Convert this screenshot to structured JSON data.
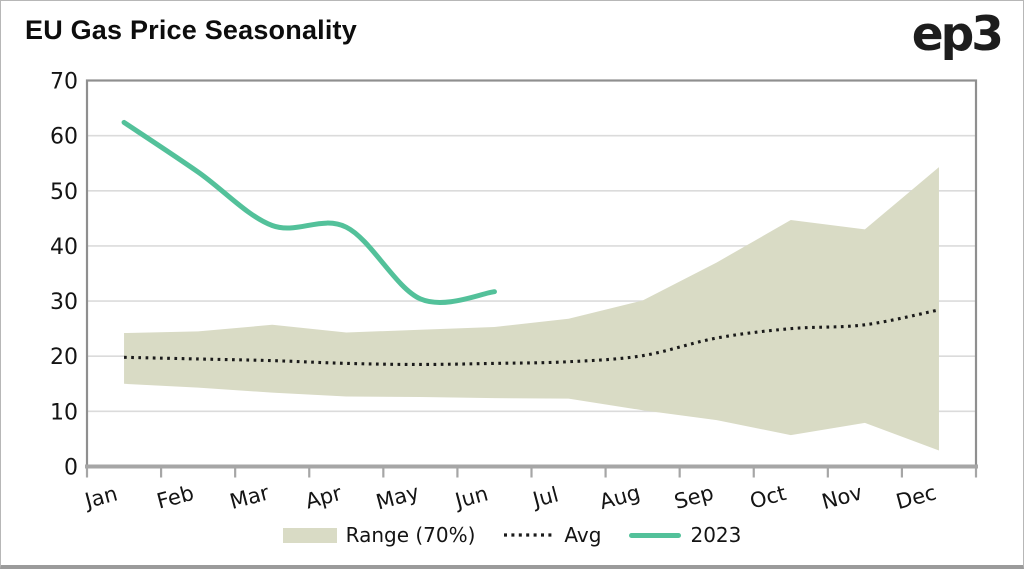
{
  "header": {
    "title": "EU Gas Price Seasonality",
    "logo": "ep3"
  },
  "legend": {
    "range": "Range (70%)",
    "avg": "Avg",
    "y2023": "2023"
  },
  "colors": {
    "range_fill": "#d9dbc5",
    "avg_line": "#1a1a1a",
    "line_2023": "#53c19a",
    "grid": "#dbdbdb",
    "frame": "#8f8f8f",
    "axis": "#a6a6a6",
    "text": "#141414"
  },
  "chart_data": {
    "type": "area",
    "title": "EU Gas Price Seasonality",
    "categories": [
      "Jan",
      "Feb",
      "Mar",
      "Apr",
      "May",
      "Jun",
      "Jul",
      "Aug",
      "Sep",
      "Oct",
      "Nov",
      "Dec"
    ],
    "y_ticks": [
      0,
      10,
      20,
      30,
      40,
      50,
      60,
      70
    ],
    "ylim": [
      0,
      70
    ],
    "grid": "horizontal",
    "legend_position": "bottom",
    "series": [
      {
        "name": "Range (70%)",
        "type": "band",
        "upper": [
          24.2,
          24.5,
          25.7,
          24.3,
          24.8,
          25.3,
          26.8,
          30.1,
          37.0,
          44.7,
          43.0,
          54.3
        ],
        "lower": [
          15.0,
          14.3,
          13.4,
          12.7,
          12.6,
          12.4,
          12.3,
          10.2,
          8.4,
          5.7,
          7.9,
          2.9
        ]
      },
      {
        "name": "Avg",
        "type": "line",
        "style": "dotted",
        "values": [
          19.8,
          19.5,
          19.2,
          18.7,
          18.5,
          18.7,
          19.0,
          20.1,
          23.3,
          25.0,
          25.7,
          28.4
        ]
      },
      {
        "name": "2023",
        "type": "line",
        "style": "solid",
        "values": [
          62.4,
          53.4,
          43.7,
          43.4,
          30.4,
          31.7,
          null,
          null,
          null,
          null,
          null,
          null
        ]
      }
    ]
  }
}
